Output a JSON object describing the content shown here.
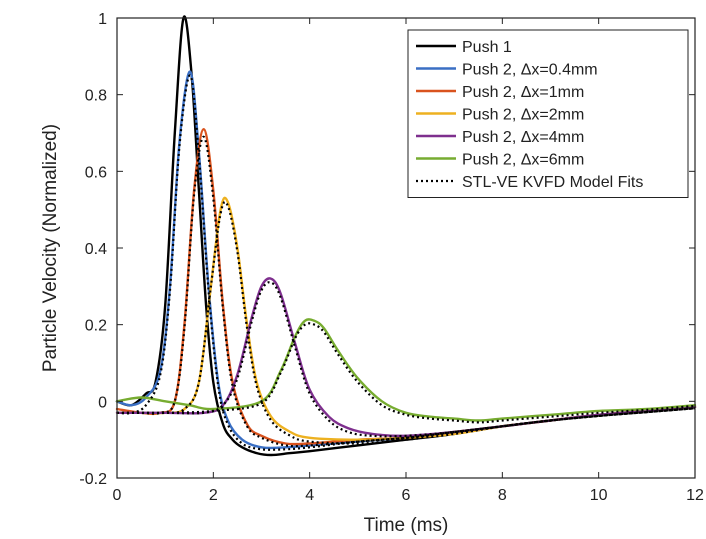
{
  "chart_data": {
    "type": "line",
    "title": "",
    "xlabel": "Time (ms)",
    "ylabel": "Particle Velocity (Normalized)",
    "xlim": [
      0,
      12
    ],
    "ylim": [
      -0.2,
      1
    ],
    "xticks": [
      0,
      2,
      4,
      6,
      8,
      10,
      12
    ],
    "yticks": [
      -0.2,
      0,
      0.2,
      0.4,
      0.6,
      0.8,
      1
    ],
    "xtick_labels": [
      "0",
      "2",
      "4",
      "6",
      "8",
      "10",
      "12"
    ],
    "ytick_labels": [
      "-0.2",
      "0",
      "0.2",
      "0.4",
      "0.6",
      "0.8",
      "1"
    ],
    "grid": false,
    "legend_position": "top-right",
    "series": [
      {
        "name": "Push 1",
        "color": "#000000",
        "style": "solid",
        "x": [
          0,
          0.3,
          0.6,
          0.8,
          1.0,
          1.2,
          1.38,
          1.55,
          1.7,
          1.85,
          2.0,
          2.2,
          2.4,
          2.6,
          2.9,
          3.2,
          3.6,
          4.0,
          5.0,
          6.0,
          7.0,
          8.0,
          9.0,
          10.0,
          11.0,
          12.0
        ],
        "y": [
          0.0,
          -0.01,
          0.02,
          0.05,
          0.25,
          0.7,
          1.0,
          0.85,
          0.55,
          0.25,
          0.05,
          -0.06,
          -0.1,
          -0.12,
          -0.135,
          -0.14,
          -0.135,
          -0.13,
          -0.115,
          -0.1,
          -0.085,
          -0.065,
          -0.05,
          -0.035,
          -0.025,
          -0.015
        ]
      },
      {
        "name": "Push 2, Δx=0.4mm",
        "color": "#3a6fc4",
        "style": "solid",
        "x": [
          0,
          0.3,
          0.6,
          0.9,
          1.1,
          1.3,
          1.52,
          1.7,
          1.9,
          2.1,
          2.3,
          2.6,
          3.0,
          3.5,
          4.0,
          5.0,
          6.0,
          7.0,
          8.0,
          9.0,
          10.0,
          11.0,
          12.0
        ],
        "y": [
          0.0,
          -0.01,
          0.01,
          0.08,
          0.3,
          0.68,
          0.86,
          0.65,
          0.3,
          0.05,
          -0.05,
          -0.1,
          -0.12,
          -0.12,
          -0.115,
          -0.105,
          -0.095,
          -0.08,
          -0.065,
          -0.05,
          -0.035,
          -0.025,
          -0.015
        ]
      },
      {
        "name": "Push 2, Δx=1mm",
        "color": "#d9531e",
        "style": "solid",
        "x": [
          0,
          0.5,
          0.9,
          1.2,
          1.4,
          1.6,
          1.8,
          2.0,
          2.2,
          2.4,
          2.7,
          3.0,
          3.5,
          4.0,
          5.0,
          6.0,
          7.0,
          8.0,
          9.0,
          10.0,
          11.0,
          12.0
        ],
        "y": [
          -0.02,
          -0.03,
          -0.03,
          0.0,
          0.2,
          0.55,
          0.71,
          0.55,
          0.25,
          0.05,
          -0.06,
          -0.09,
          -0.11,
          -0.11,
          -0.1,
          -0.095,
          -0.08,
          -0.065,
          -0.05,
          -0.035,
          -0.025,
          -0.015
        ]
      },
      {
        "name": "Push 2, Δx=2mm",
        "color": "#edb120",
        "style": "solid",
        "x": [
          0,
          0.5,
          1.0,
          1.4,
          1.7,
          1.95,
          2.15,
          2.3,
          2.5,
          2.7,
          2.9,
          3.2,
          3.6,
          4.0,
          5.0,
          6.0,
          7.0,
          8.0,
          9.0,
          10.0,
          11.0,
          12.0
        ],
        "y": [
          -0.03,
          -0.03,
          -0.03,
          -0.02,
          0.05,
          0.3,
          0.5,
          0.52,
          0.4,
          0.2,
          0.05,
          -0.04,
          -0.08,
          -0.095,
          -0.1,
          -0.095,
          -0.085,
          -0.065,
          -0.05,
          -0.035,
          -0.025,
          -0.015
        ]
      },
      {
        "name": "Push 2, Δx=4mm",
        "color": "#7e2f8e",
        "style": "solid",
        "x": [
          0,
          1.0,
          1.8,
          2.2,
          2.5,
          2.8,
          3.0,
          3.2,
          3.4,
          3.7,
          4.0,
          4.4,
          4.8,
          5.3,
          6.0,
          7.0,
          8.0,
          9.0,
          10.0,
          11.0,
          12.0
        ],
        "y": [
          -0.03,
          -0.03,
          -0.03,
          -0.01,
          0.07,
          0.22,
          0.3,
          0.32,
          0.28,
          0.15,
          0.03,
          -0.04,
          -0.07,
          -0.085,
          -0.09,
          -0.08,
          -0.065,
          -0.05,
          -0.035,
          -0.025,
          -0.015
        ]
      },
      {
        "name": "Push 2, Δx=6mm",
        "color": "#77ac30",
        "style": "solid",
        "x": [
          0,
          0.5,
          1.0,
          1.5,
          2.0,
          3.0,
          3.4,
          3.7,
          3.9,
          4.1,
          4.3,
          4.6,
          5.0,
          5.5,
          6.0,
          6.5,
          7.0,
          7.5,
          8.0,
          9.0,
          10.0,
          11.0,
          12.0
        ],
        "y": [
          0.0,
          0.01,
          0.0,
          -0.01,
          -0.02,
          0.0,
          0.08,
          0.17,
          0.21,
          0.21,
          0.19,
          0.13,
          0.06,
          0.0,
          -0.03,
          -0.04,
          -0.045,
          -0.05,
          -0.045,
          -0.035,
          -0.025,
          -0.02,
          -0.01
        ]
      }
    ],
    "fit_series": [
      {
        "name": "STL-VE KVFD Model Fits",
        "color": "#000000",
        "style": "dotted",
        "x": [
          0,
          0.3,
          0.6,
          0.9,
          1.1,
          1.3,
          1.52,
          1.7,
          1.9,
          2.1,
          2.3,
          2.6,
          3.0,
          3.5,
          4.0,
          5.0,
          6.0,
          7.0,
          8.0,
          9.0,
          10.0,
          11.0,
          12.0
        ],
        "y": [
          -0.03,
          -0.03,
          -0.01,
          0.07,
          0.29,
          0.67,
          0.85,
          0.64,
          0.29,
          0.04,
          -0.06,
          -0.11,
          -0.125,
          -0.125,
          -0.12,
          -0.105,
          -0.095,
          -0.08,
          -0.065,
          -0.05,
          -0.038,
          -0.028,
          -0.018
        ]
      },
      {
        "name": "",
        "color": "#000000",
        "style": "dotted",
        "x": [
          0,
          0.5,
          0.9,
          1.2,
          1.4,
          1.6,
          1.8,
          2.0,
          2.2,
          2.4,
          2.7,
          3.0,
          3.5,
          4.0,
          5.0,
          6.0,
          7.0,
          8.0,
          9.0,
          10.0,
          11.0,
          12.0
        ],
        "y": [
          -0.03,
          -0.03,
          -0.03,
          0.0,
          0.19,
          0.54,
          0.69,
          0.53,
          0.24,
          0.04,
          -0.065,
          -0.095,
          -0.115,
          -0.115,
          -0.105,
          -0.095,
          -0.08,
          -0.065,
          -0.05,
          -0.038,
          -0.028,
          -0.018
        ]
      },
      {
        "name": "",
        "color": "#000000",
        "style": "dotted",
        "x": [
          0,
          0.5,
          1.0,
          1.4,
          1.7,
          1.95,
          2.15,
          2.3,
          2.5,
          2.7,
          2.9,
          3.2,
          3.6,
          4.0,
          5.0,
          6.0,
          7.0,
          8.0,
          9.0,
          10.0,
          11.0,
          12.0
        ],
        "y": [
          -0.03,
          -0.03,
          -0.03,
          -0.02,
          0.05,
          0.3,
          0.49,
          0.51,
          0.39,
          0.19,
          0.04,
          -0.05,
          -0.09,
          -0.105,
          -0.11,
          -0.1,
          -0.085,
          -0.065,
          -0.05,
          -0.038,
          -0.028,
          -0.018
        ]
      },
      {
        "name": "",
        "color": "#000000",
        "style": "dotted",
        "x": [
          0,
          1.0,
          1.8,
          2.2,
          2.5,
          2.8,
          3.0,
          3.2,
          3.4,
          3.7,
          4.0,
          4.4,
          4.8,
          5.3,
          6.0,
          7.0,
          8.0,
          9.0,
          10.0,
          11.0,
          12.0
        ],
        "y": [
          -0.03,
          -0.03,
          -0.03,
          -0.01,
          0.06,
          0.21,
          0.29,
          0.31,
          0.27,
          0.14,
          0.02,
          -0.05,
          -0.08,
          -0.09,
          -0.09,
          -0.08,
          -0.065,
          -0.05,
          -0.038,
          -0.028,
          -0.018
        ]
      },
      {
        "name": "",
        "color": "#000000",
        "style": "dotted",
        "x": [
          0,
          1.0,
          2.0,
          3.0,
          3.4,
          3.7,
          3.9,
          4.1,
          4.3,
          4.6,
          5.0,
          5.5,
          6.0,
          6.5,
          7.0,
          7.5,
          8.0,
          9.0,
          10.0,
          11.0,
          12.0
        ],
        "y": [
          -0.03,
          -0.03,
          -0.025,
          -0.005,
          0.075,
          0.165,
          0.2,
          0.2,
          0.18,
          0.12,
          0.05,
          -0.01,
          -0.035,
          -0.045,
          -0.05,
          -0.055,
          -0.05,
          -0.04,
          -0.03,
          -0.022,
          -0.012
        ]
      }
    ]
  }
}
